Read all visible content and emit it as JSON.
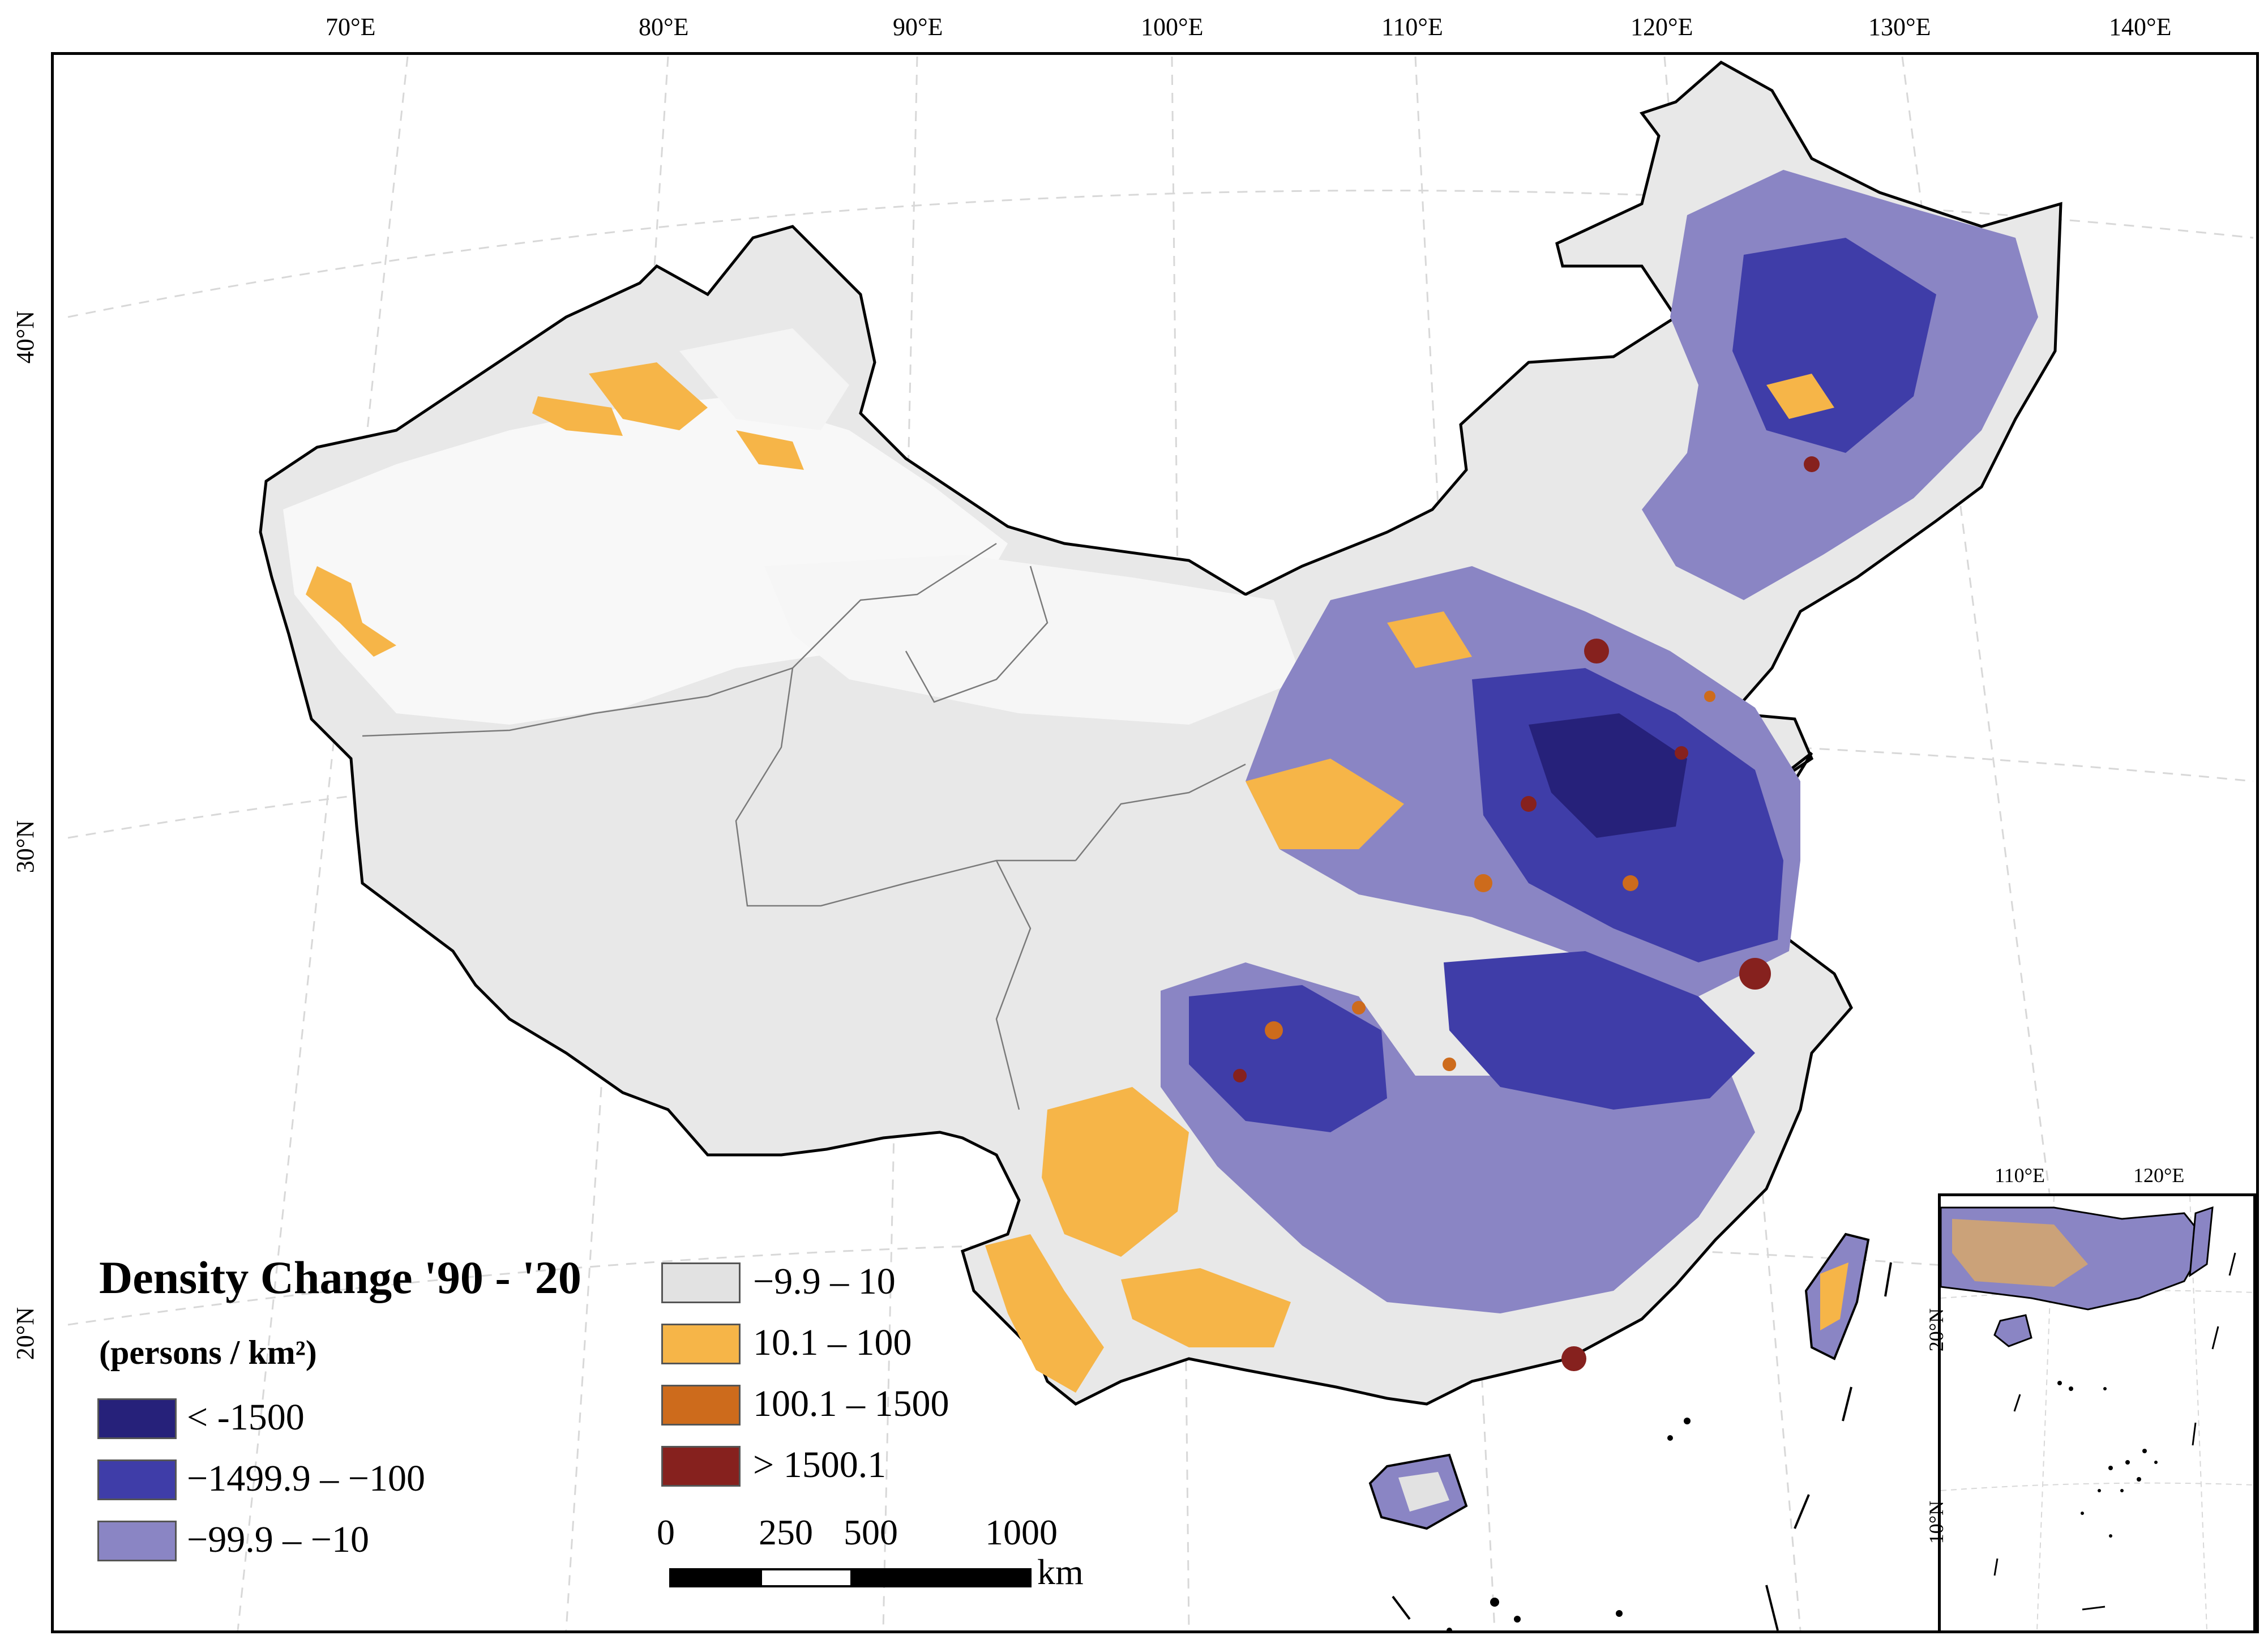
{
  "graticule": {
    "lon_labels": [
      "70°E",
      "80°E",
      "90°E",
      "100°E",
      "110°E",
      "120°E",
      "130°E",
      "140°E"
    ],
    "lat_labels": [
      "40°N",
      "30°N",
      "20°N"
    ]
  },
  "legend": {
    "title": "Density Change '90 - '20",
    "subtitle": "(persons / km²)",
    "classes": [
      {
        "label": "< -1500",
        "color": "#26217a"
      },
      {
        "label": "−1499.9 – −100",
        "color": "#3f3da8"
      },
      {
        "label": "−99.9 – −10",
        "color": "#8a85c4"
      },
      {
        "label": "−9.9 – 10",
        "color": "#e2e2e2"
      },
      {
        "label": "10.1 – 100",
        "color": "#f6b548"
      },
      {
        "label": "100.1 – 1500",
        "color": "#cd6b1c"
      },
      {
        "label": "> 1500.1",
        "color": "#86211e"
      }
    ]
  },
  "scalebar": {
    "ticks": [
      "0",
      "250",
      "500",
      "1000"
    ],
    "unit": "km"
  },
  "inset": {
    "lon_labels": [
      "110°E",
      "120°E"
    ],
    "lat_labels": [
      "20°N",
      "10°N"
    ]
  }
}
